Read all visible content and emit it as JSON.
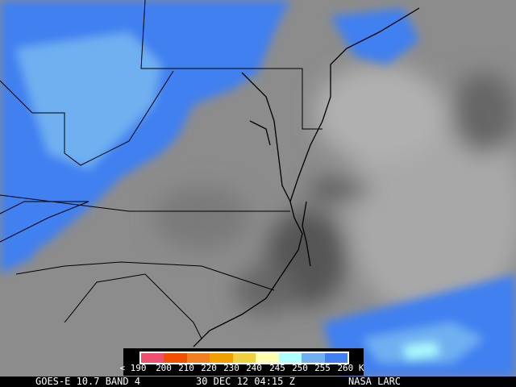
{
  "footer": {
    "satellite_band": "GOES-E 10.7 BAND 4",
    "timestamp": "30 DEC 12 04:15 Z",
    "credit": "NASA LARC"
  },
  "legend": {
    "ticks": [
      "< 190",
      "200",
      "210",
      "220",
      "230",
      "240",
      "245",
      "250",
      "255",
      "260 K"
    ],
    "colors": [
      "#f05070",
      "#f05000",
      "#f08020",
      "#f0a000",
      "#f0d040",
      "#ffffb0",
      "#b0ffff",
      "#70b0f0",
      "#4080f0"
    ]
  },
  "imagery": {
    "colors": {
      "cold_cloud": "#4080f0",
      "very_cold_cloud": "#70b0f0",
      "warm": "#8a8a8a",
      "border": "#000000"
    }
  }
}
